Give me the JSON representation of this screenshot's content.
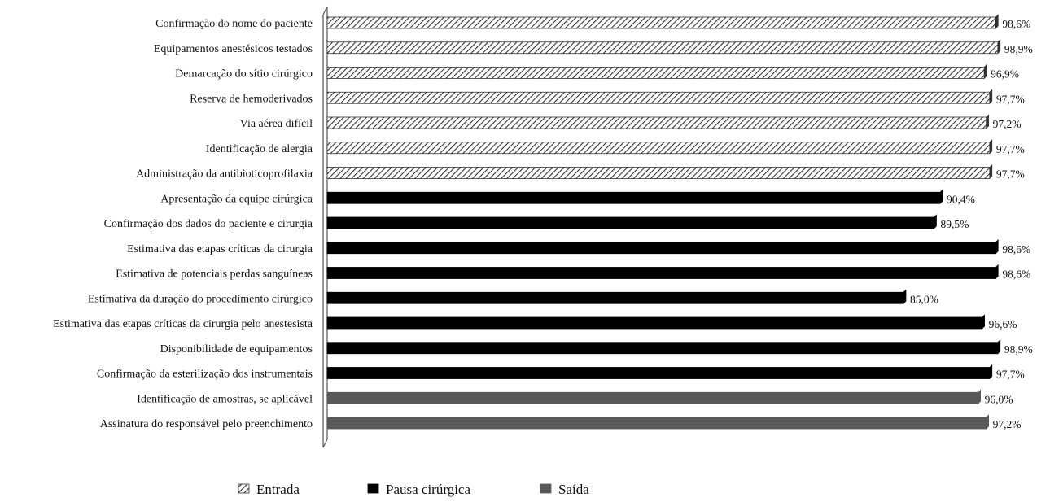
{
  "chart_data": {
    "type": "bar",
    "orientation": "horizontal",
    "xlim": [
      0,
      100
    ],
    "grid": false,
    "legend_position": "bottom",
    "categories": [
      "Confirmação do nome do paciente",
      "Equipamentos anestésicos testados",
      "Demarcação do sítio cirúrgico",
      "Reserva de hemoderivados",
      "Via aérea difícil",
      "Identificação de alergia",
      "Administração da antibioticoprofilaxia",
      "Apresentação da equipe cirúrgica",
      "Confirmação dos dados do paciente e cirurgia",
      "Estimativa das etapas críticas da cirurgia",
      "Estimativa de potenciais perdas sanguíneas",
      "Estimativa da duração do procedimento cirúrgico",
      "Estimativa das etapas críticas  da cirurgia pelo anestesista",
      "Disponibilidade de equipamentos",
      "Confirmação da esterilização  dos instrumentais",
      "Identificação de amostras, se aplicável",
      "Assinatura do responsável pelo preenchimento"
    ],
    "values": [
      98.6,
      98.9,
      96.9,
      97.7,
      97.2,
      97.7,
      97.7,
      90.4,
      89.5,
      98.6,
      98.6,
      85.0,
      96.6,
      98.9,
      97.7,
      96.0,
      97.2
    ],
    "value_labels": [
      "98,6%",
      "98,9%",
      "96,9%",
      "97,7%",
      "97,2%",
      "97,7%",
      "97,7%",
      "90,4%",
      "89,5%",
      "98,6%",
      "98,6%",
      "85,0%",
      "96,6%",
      "98,9%",
      "97,7%",
      "96,0%",
      "97,2%"
    ],
    "series_index": [
      0,
      0,
      0,
      0,
      0,
      0,
      0,
      1,
      1,
      1,
      1,
      1,
      1,
      1,
      1,
      2,
      2
    ],
    "series": [
      {
        "name": "Entrada",
        "style": "hatched",
        "color": "#333333"
      },
      {
        "name": "Pausa cirúrgica",
        "style": "solid",
        "color": "#000000"
      },
      {
        "name": "Saída",
        "style": "solid",
        "color": "#595959"
      }
    ]
  }
}
